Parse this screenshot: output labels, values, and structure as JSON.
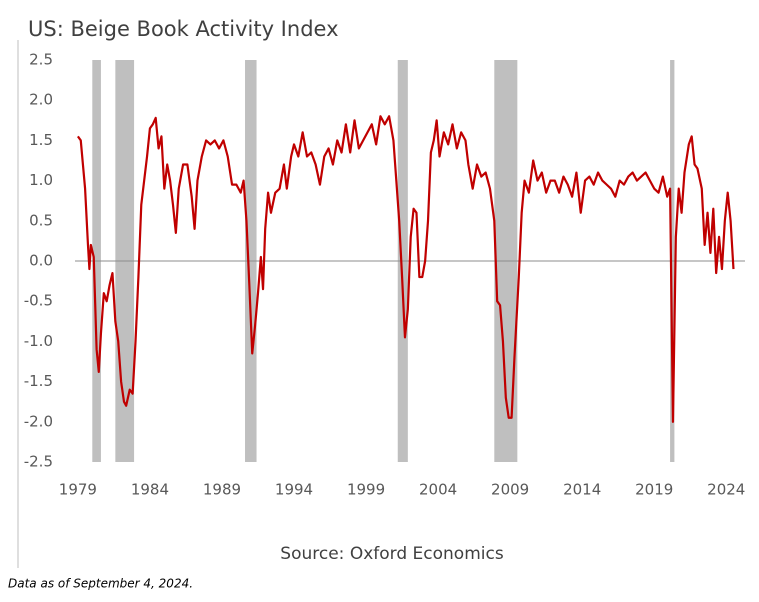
{
  "chart_data": {
    "type": "line",
    "title": "US: Beige Book Activity Index",
    "source": "Source: Oxford Economics",
    "footnote": "Data as of September 4, 2024.",
    "xlim": [
      1978.8,
      2025.3
    ],
    "xticks": [
      1979,
      1984,
      1989,
      1994,
      1999,
      2004,
      2009,
      2014,
      2019,
      2024
    ],
    "ylim": [
      -2.5,
      2.5
    ],
    "yticks": [
      2.5,
      {
        "value": 2,
        "label": "2.0"
      },
      1.5,
      {
        "value": 1,
        "label": "1.0"
      },
      0.5,
      {
        "value": 0,
        "label": "0.0"
      },
      -0.5,
      {
        "value": -1,
        "label": "-1.0"
      },
      -1.5,
      {
        "value": -2,
        "label": "-2.0"
      },
      -2.5
    ],
    "grid": false,
    "shade_color": "#bfbfbf",
    "shaded_periods": [
      [
        1980.0,
        1980.6
      ],
      [
        1981.6,
        1982.9
      ],
      [
        1990.6,
        1991.4
      ],
      [
        2001.2,
        2001.9
      ],
      [
        2007.9,
        2009.5
      ],
      [
        2020.1,
        2020.4
      ]
    ],
    "series": [
      {
        "color": "#c00000",
        "x": [
          1979.0,
          1979.2,
          1979.35,
          1979.5,
          1979.7,
          1979.8,
          1979.9,
          1980.1,
          1980.3,
          1980.45,
          1980.6,
          1980.8,
          1981.0,
          1981.2,
          1981.4,
          1981.6,
          1981.8,
          1982.0,
          1982.2,
          1982.35,
          1982.6,
          1982.8,
          1983.0,
          1983.2,
          1983.4,
          1983.6,
          1983.8,
          1984.0,
          1984.2,
          1984.4,
          1984.6,
          1984.8,
          1985.0,
          1985.2,
          1985.4,
          1985.6,
          1985.8,
          1986.0,
          1986.3,
          1986.6,
          1986.9,
          1987.1,
          1987.3,
          1987.6,
          1987.9,
          1988.2,
          1988.5,
          1988.8,
          1989.1,
          1989.4,
          1989.7,
          1990.0,
          1990.3,
          1990.5,
          1990.7,
          1990.9,
          1991.1,
          1991.3,
          1991.5,
          1991.7,
          1991.85,
          1992.0,
          1992.2,
          1992.4,
          1992.7,
          1993.0,
          1993.3,
          1993.5,
          1993.8,
          1994.0,
          1994.3,
          1994.6,
          1994.9,
          1995.2,
          1995.5,
          1995.8,
          1996.1,
          1996.4,
          1996.7,
          1997.0,
          1997.3,
          1997.6,
          1997.9,
          1998.2,
          1998.5,
          1998.8,
          1999.1,
          1999.4,
          1999.7,
          2000.0,
          2000.3,
          2000.6,
          2000.9,
          2001.1,
          2001.3,
          2001.5,
          2001.7,
          2001.9,
          2002.1,
          2002.3,
          2002.5,
          2002.7,
          2002.9,
          2003.1,
          2003.3,
          2003.5,
          2003.7,
          2003.9,
          2004.1,
          2004.4,
          2004.7,
          2005.0,
          2005.3,
          2005.6,
          2005.9,
          2006.1,
          2006.4,
          2006.7,
          2007.0,
          2007.3,
          2007.6,
          2007.9,
          2008.1,
          2008.3,
          2008.5,
          2008.7,
          2008.9,
          2009.1,
          2009.3,
          2009.6,
          2009.8,
          2010.0,
          2010.3,
          2010.6,
          2010.9,
          2011.2,
          2011.5,
          2011.8,
          2012.1,
          2012.4,
          2012.7,
          2013.0,
          2013.3,
          2013.6,
          2013.9,
          2014.2,
          2014.5,
          2014.8,
          2015.1,
          2015.4,
          2015.7,
          2016.0,
          2016.3,
          2016.6,
          2016.9,
          2017.2,
          2017.5,
          2017.8,
          2018.1,
          2018.4,
          2018.7,
          2019.0,
          2019.3,
          2019.6,
          2019.9,
          2020.1,
          2020.3,
          2020.5,
          2020.7,
          2020.9,
          2021.1,
          2021.4,
          2021.6,
          2021.8,
          2022.0,
          2022.3,
          2022.5,
          2022.7,
          2022.9,
          2023.1,
          2023.3,
          2023.5,
          2023.7,
          2023.9,
          2024.1,
          2024.3,
          2024.5
        ],
        "values": [
          1.55,
          1.5,
          1.2,
          0.9,
          0.2,
          -0.1,
          0.2,
          0.05,
          -1.1,
          -1.38,
          -0.9,
          -0.4,
          -0.5,
          -0.3,
          -0.15,
          -0.75,
          -1.0,
          -1.5,
          -1.75,
          -1.8,
          -1.6,
          -1.65,
          -1.0,
          -0.2,
          0.7,
          1.0,
          1.3,
          1.65,
          1.7,
          1.78,
          1.4,
          1.55,
          0.9,
          1.2,
          1.0,
          0.7,
          0.35,
          0.9,
          1.2,
          1.2,
          0.8,
          0.4,
          1.0,
          1.3,
          1.5,
          1.45,
          1.5,
          1.4,
          1.5,
          1.3,
          0.95,
          0.95,
          0.85,
          1.0,
          0.5,
          -0.3,
          -1.15,
          -0.8,
          -0.4,
          0.05,
          -0.35,
          0.4,
          0.85,
          0.6,
          0.85,
          0.9,
          1.2,
          0.9,
          1.3,
          1.45,
          1.3,
          1.6,
          1.3,
          1.35,
          1.2,
          0.95,
          1.3,
          1.4,
          1.2,
          1.5,
          1.35,
          1.7,
          1.35,
          1.75,
          1.4,
          1.5,
          1.6,
          1.7,
          1.45,
          1.8,
          1.7,
          1.8,
          1.5,
          1.0,
          0.5,
          -0.2,
          -0.95,
          -0.6,
          0.3,
          0.65,
          0.6,
          -0.2,
          -0.2,
          0.0,
          0.5,
          1.35,
          1.5,
          1.75,
          1.3,
          1.6,
          1.45,
          1.7,
          1.4,
          1.6,
          1.5,
          1.2,
          0.9,
          1.2,
          1.05,
          1.1,
          0.9,
          0.5,
          -0.5,
          -0.55,
          -1.0,
          -1.7,
          -1.95,
          -1.95,
          -1.2,
          -0.2,
          0.6,
          1.0,
          0.85,
          1.25,
          1.0,
          1.1,
          0.85,
          1.0,
          1.0,
          0.85,
          1.05,
          0.95,
          0.8,
          1.1,
          0.6,
          1.0,
          1.05,
          0.95,
          1.1,
          1.0,
          0.95,
          0.9,
          0.8,
          1.0,
          0.95,
          1.05,
          1.1,
          1.0,
          1.05,
          1.1,
          1.0,
          0.9,
          0.85,
          1.05,
          0.8,
          0.9,
          -2.0,
          0.3,
          0.9,
          0.6,
          1.1,
          1.45,
          1.55,
          1.2,
          1.15,
          0.9,
          0.2,
          0.6,
          0.1,
          0.65,
          -0.15,
          0.3,
          -0.1,
          0.5,
          0.85,
          0.5,
          -0.1
        ]
      }
    ]
  }
}
